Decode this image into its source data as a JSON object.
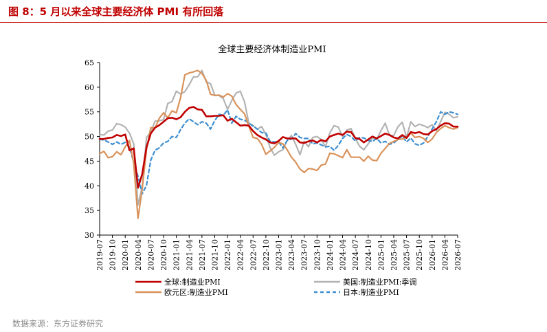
{
  "page": {
    "heading": "图 8：5 月以来全球主要经济体 PMI 有所回落",
    "source": "数据来源：东方证券研究"
  },
  "colors": {
    "heading": "#c00000",
    "global": "#c00000",
    "us": "#b3b3b3",
    "euro": "#d9925a",
    "japan": "#3d8fd1"
  },
  "chart_data": {
    "type": "line",
    "title": "全球主要经济体制造业PMI",
    "xlabel": "",
    "ylabel": "",
    "ylim": [
      30,
      65
    ],
    "yticks": [
      30,
      35,
      40,
      45,
      50,
      55,
      60,
      65
    ],
    "grid": false,
    "legend_position": "bottom",
    "x": [
      "2019-07",
      "2019-08",
      "2019-09",
      "2019-10",
      "2019-11",
      "2019-12",
      "2020-01",
      "2020-02",
      "2020-03",
      "2020-04",
      "2020-05",
      "2020-06",
      "2020-07",
      "2020-08",
      "2020-09",
      "2020-10",
      "2020-11",
      "2020-12",
      "2021-01",
      "2021-02",
      "2021-03",
      "2021-04",
      "2021-05",
      "2021-06",
      "2021-07",
      "2021-08",
      "2021-09",
      "2021-10",
      "2021-11",
      "2021-12",
      "2022-01",
      "2022-02",
      "2022-03",
      "2022-04",
      "2022-05",
      "2022-06",
      "2022-07",
      "2022-08",
      "2022-09",
      "2022-10",
      "2022-11",
      "2022-12",
      "2023-01",
      "2023-02",
      "2023-03",
      "2023-04",
      "2023-05",
      "2023-06",
      "2023-07",
      "2023-08",
      "2023-09",
      "2023-10",
      "2023-11",
      "2023-12",
      "2024-01",
      "2024-02",
      "2024-03",
      "2024-04",
      "2024-05",
      "2024-06",
      "2024-07",
      "2024-08",
      "2024-09",
      "2024-10",
      "2024-11",
      "2024-12",
      "2025-01",
      "2025-02",
      "2025-03",
      "2025-04",
      "2025-05",
      "2025-06",
      "2025-07",
      "2025-08",
      "2025-09",
      "2025-10",
      "2025-11",
      "2025-12",
      "2026-01",
      "2026-02",
      "2026-03",
      "2026-04",
      "2026-05",
      "2026-06",
      "2026-07"
    ],
    "xtick_labels": [
      "2019-07",
      "2019-10",
      "2020-01",
      "2020-04",
      "2020-07",
      "2020-10",
      "2021-01",
      "2021-04",
      "2021-07",
      "2021-10",
      "2022-01",
      "2022-04",
      "2022-07",
      "2022-10",
      "2023-01",
      "2023-04",
      "2023-07",
      "2023-10",
      "2024-01",
      "2024-04",
      "2024-07",
      "2024-10",
      "2025-01",
      "2025-04",
      "2025-07",
      "2025-10",
      "2026-01",
      "2026-04",
      "2026-07"
    ],
    "series": [
      {
        "name": "全球:制造业PMI",
        "color": "#c00000",
        "dash": "solid",
        "values": [
          49.5,
          49.5,
          49.7,
          49.8,
          50.3,
          50.1,
          50.4,
          47.2,
          47.6,
          39.6,
          42.4,
          47.8,
          50.6,
          51.8,
          52.3,
          53.0,
          53.7,
          53.8,
          53.5,
          53.9,
          55.0,
          55.8,
          56.0,
          55.5,
          55.4,
          54.1,
          54.1,
          54.2,
          54.2,
          54.3,
          53.2,
          53.6,
          52.9,
          52.2,
          52.3,
          52.2,
          51.1,
          50.3,
          49.8,
          49.4,
          48.8,
          48.6,
          49.1,
          49.9,
          49.6,
          49.6,
          49.6,
          48.8,
          48.7,
          49.0,
          49.2,
          48.8,
          49.3,
          49.0,
          50.0,
          50.3,
          50.6,
          50.3,
          51.0,
          50.9,
          49.7,
          49.5,
          48.8,
          49.4,
          50.0,
          49.6,
          50.1,
          50.6,
          50.3,
          49.8,
          49.6,
          50.3,
          49.7,
          50.9,
          50.7,
          50.9,
          50.5,
          50.4,
          51.1,
          51.5,
          52.2,
          52.7,
          52.6,
          52.0,
          52.0
        ]
      },
      {
        "name": "美国:制造业PMI:季调",
        "color": "#b3b3b3",
        "dash": "solid",
        "values": [
          50.4,
          50.3,
          51.1,
          51.3,
          52.6,
          52.4,
          51.9,
          50.7,
          48.5,
          36.1,
          39.8,
          49.8,
          50.9,
          53.1,
          53.2,
          53.4,
          56.7,
          57.1,
          59.2,
          58.6,
          59.1,
          60.5,
          62.1,
          62.1,
          63.4,
          61.1,
          60.7,
          58.4,
          58.3,
          57.7,
          55.5,
          57.3,
          58.8,
          59.2,
          57.0,
          52.7,
          52.2,
          51.5,
          52.0,
          50.4,
          47.7,
          46.2,
          46.9,
          47.3,
          49.2,
          50.2,
          48.4,
          46.3,
          49.0,
          47.9,
          49.8,
          50.0,
          49.4,
          47.9,
          50.7,
          52.2,
          51.9,
          50.0,
          51.3,
          51.6,
          49.6,
          48.0,
          47.3,
          48.5,
          49.7,
          49.4,
          51.2,
          52.7,
          50.2,
          50.2,
          52.0,
          52.9,
          49.8,
          53.0,
          52.0,
          52.5,
          52.2,
          51.8,
          52.4,
          51.2,
          53.0,
          54.9,
          54.5,
          53.8,
          54.0
        ]
      },
      {
        "name": "欧元区:制造业PMI",
        "color": "#d9925a",
        "dash": "solid",
        "values": [
          46.5,
          47.0,
          45.7,
          45.9,
          46.9,
          46.3,
          47.9,
          49.2,
          44.5,
          33.4,
          39.4,
          47.4,
          51.8,
          51.7,
          53.7,
          54.8,
          53.8,
          55.2,
          54.8,
          57.9,
          62.5,
          62.9,
          63.1,
          63.4,
          62.8,
          61.4,
          58.6,
          58.3,
          58.4,
          58.0,
          58.7,
          58.2,
          56.5,
          55.5,
          54.6,
          52.1,
          49.8,
          49.6,
          48.4,
          46.4,
          47.1,
          47.8,
          48.8,
          48.5,
          47.3,
          45.8,
          44.8,
          43.4,
          42.7,
          43.5,
          43.4,
          43.1,
          44.2,
          44.4,
          46.6,
          46.5,
          46.1,
          45.7,
          47.3,
          45.8,
          45.8,
          45.8,
          45.0,
          46.0,
          45.2,
          45.1,
          46.6,
          47.6,
          48.6,
          49.0,
          49.4,
          49.5,
          49.8,
          50.7,
          49.8,
          50.0,
          49.6,
          48.8,
          49.5,
          50.8,
          51.6,
          52.2,
          51.8,
          51.5,
          51.8
        ]
      },
      {
        "name": "日本:制造业PMI",
        "color": "#3d8fd1",
        "dash": "dashed",
        "values": [
          49.4,
          49.3,
          48.9,
          48.4,
          48.9,
          48.4,
          48.8,
          47.8,
          44.8,
          41.9,
          38.4,
          40.1,
          45.2,
          47.2,
          47.7,
          48.7,
          49.0,
          50.0,
          49.8,
          51.4,
          52.7,
          53.6,
          53.0,
          52.4,
          53.0,
          52.7,
          51.5,
          53.2,
          54.5,
          54.3,
          55.4,
          52.7,
          54.1,
          53.5,
          53.3,
          52.7,
          52.1,
          51.5,
          50.8,
          50.7,
          49.0,
          48.9,
          48.9,
          47.7,
          49.2,
          49.5,
          50.6,
          49.8,
          49.6,
          49.6,
          48.5,
          48.7,
          48.3,
          47.9,
          48.0,
          47.2,
          48.2,
          49.6,
          50.4,
          50.0,
          49.1,
          49.8,
          49.7,
          49.2,
          49.0,
          49.6,
          48.7,
          49.0,
          48.4,
          48.7,
          49.4,
          50.1,
          48.9,
          49.7,
          48.5,
          48.2,
          48.7,
          50.0,
          51.5,
          53.0,
          55.0,
          54.5,
          55.0,
          54.8,
          54.5
        ]
      }
    ]
  }
}
